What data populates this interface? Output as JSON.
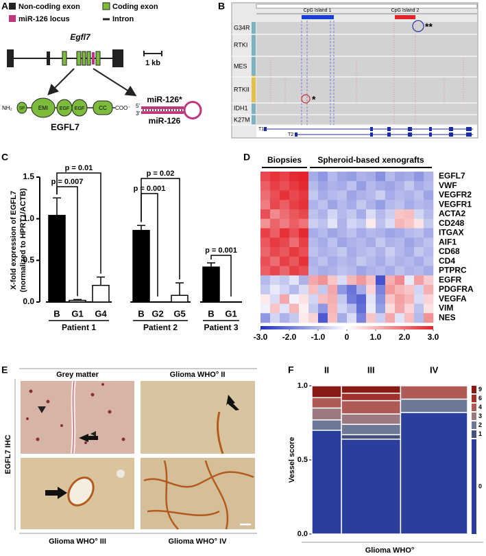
{
  "figure": {
    "A": {
      "label": "A",
      "legend": [
        "Non-coding exon",
        "Coding exon",
        "miR-126 locus",
        "Intron"
      ],
      "gene": "Egfl7",
      "scale": "1 kb",
      "n_term": "NH₂",
      "c_term": "COO⁻",
      "domains": [
        "SP",
        "EMI",
        "EGF",
        "EGF",
        "CC"
      ],
      "protein": "EGFL7",
      "mirna_star": "miR-126*",
      "mirna": "miR-126",
      "end5": "5'",
      "end3": "3'"
    },
    "B": {
      "label": "B",
      "tracks": [
        "G34R",
        "RTKI",
        "MES",
        "RTKII",
        "IDH1",
        "K27M"
      ],
      "cpg": [
        "CpG Island 1",
        "CpG Island 2"
      ],
      "transcripts": [
        "T1",
        "T2"
      ],
      "annotations": [
        "**",
        "*"
      ]
    },
    "E": {
      "label": "E",
      "side_label": "EGFL7 IHC",
      "images": [
        "Grey matter",
        "Glioma WHO° II",
        "Glioma WHO° III",
        "Glioma WHO° IV"
      ]
    }
  },
  "chart_data": [
    {
      "type": "bar",
      "panel": "C",
      "ylabel": "X-fold expression of EGFL7",
      "ylabel2": "(normalized to HPRT1/ACTB)",
      "ylim": [
        0,
        1.5
      ],
      "yticks": [
        {
          "value": 0,
          "label": "0.0"
        },
        0.5,
        {
          "value": 1,
          "label": "1.0"
        },
        1.5
      ],
      "color_biopsy": "#000000",
      "color_graft": "#ffffff",
      "groups": [
        {
          "name": "Patient 1",
          "categories": [
            "B",
            "G1",
            "G4"
          ],
          "values": [
            1.04,
            0.02,
            0.2
          ],
          "errors": [
            0.21,
            0.01,
            0.1
          ],
          "p_values": [
            "p = 0.007",
            "p = 0.01"
          ]
        },
        {
          "name": "Patient 2",
          "categories": [
            "B",
            "G2",
            "G5"
          ],
          "values": [
            0.86,
            0,
            0.08
          ],
          "errors": [
            0.06,
            0,
            0.15
          ],
          "p_values": [
            "p = 0.001",
            "p = 0.02"
          ]
        },
        {
          "name": "Patient 3",
          "categories": [
            "B",
            "G1"
          ],
          "values": [
            0.42,
            0
          ],
          "errors": [
            0.05,
            0
          ],
          "p_values": [
            "p = 0.001"
          ]
        }
      ]
    },
    {
      "type": "heatmap",
      "panel": "D",
      "column_groups": [
        {
          "name": "Biopsies",
          "columns": 5
        },
        {
          "name": "Spheroid-based xenografts",
          "columns": 13
        }
      ],
      "colorbar": {
        "lim": [
          -3,
          3
        ],
        "ticks": [
          {
            "value": -3,
            "label": "-3.0"
          },
          {
            "value": -2,
            "label": "-2.0"
          },
          {
            "value": -1,
            "label": "-1.0"
          },
          0,
          {
            "value": 1,
            "label": "1.0"
          },
          {
            "value": 2,
            "label": "2.0"
          },
          {
            "value": 3,
            "label": "3.0"
          }
        ],
        "colors": [
          "#1f2fc4",
          "#ffffff",
          "#e3242b"
        ]
      },
      "rows": [
        {
          "name": "EGFL7",
          "values": [
            2.5,
            2.8,
            2.6,
            2.9,
            3.0,
            -1.2,
            -1.5,
            -1.0,
            -1.3,
            -1.4,
            -1.1,
            -1.2,
            -1.6,
            -1.0,
            -1.3,
            -1.2,
            -1.5,
            -1.1
          ]
        },
        {
          "name": "VWF",
          "values": [
            2.2,
            2.6,
            2.4,
            2.7,
            2.9,
            -1.0,
            -1.3,
            -1.1,
            -1.2,
            -0.9,
            -1.4,
            -1.0,
            -1.2,
            -1.3,
            -1.1,
            -0.8,
            -1.2,
            -1.0
          ]
        },
        {
          "name": "VEGFR2",
          "values": [
            2.0,
            2.4,
            2.8,
            2.5,
            2.7,
            -0.8,
            -1.2,
            -1.0,
            -0.9,
            -1.3,
            -1.1,
            -1.0,
            -0.7,
            -1.2,
            -1.0,
            -1.1,
            -0.9,
            -1.3
          ]
        },
        {
          "name": "VEGFR1",
          "values": [
            1.8,
            2.5,
            2.2,
            2.6,
            2.8,
            -1.1,
            -0.9,
            -1.3,
            -1.0,
            -1.2,
            -0.8,
            -1.1,
            -1.4,
            -1.0,
            -0.9,
            -1.2,
            -1.0,
            -1.1
          ]
        },
        {
          "name": "ACTA2",
          "values": [
            2.4,
            1.6,
            2.0,
            2.3,
            2.5,
            -0.9,
            -1.1,
            -0.6,
            -1.0,
            -0.8,
            -1.2,
            -0.5,
            -1.0,
            -0.7,
            0.8,
            0.9,
            -0.6,
            -1.0
          ]
        },
        {
          "name": "CD248",
          "values": [
            1.5,
            2.1,
            1.8,
            2.2,
            1.9,
            -0.7,
            -0.9,
            -0.4,
            -1.1,
            -0.6,
            -0.8,
            0.3,
            -0.9,
            -0.5,
            1.0,
            0.8,
            0.4,
            -0.8
          ]
        },
        {
          "name": "ITGAX",
          "values": [
            2.6,
            2.2,
            2.8,
            2.4,
            2.9,
            -1.2,
            -1.0,
            -1.3,
            -1.1,
            -0.9,
            -1.2,
            -1.0,
            -1.1,
            -1.3,
            -1.2,
            -1.0,
            -0.9,
            -1.2
          ]
        },
        {
          "name": "AIF1",
          "values": [
            2.3,
            2.7,
            2.5,
            2.0,
            2.6,
            -1.0,
            -1.2,
            -0.9,
            -1.3,
            -1.1,
            -1.0,
            -1.2,
            -0.8,
            -1.1,
            -1.0,
            -1.3,
            -1.1,
            -0.9
          ]
        },
        {
          "name": "CD68",
          "values": [
            2.1,
            2.5,
            2.3,
            2.7,
            2.4,
            -0.9,
            -1.1,
            -1.0,
            -0.8,
            -1.2,
            -1.0,
            -0.9,
            -1.1,
            -0.7,
            -1.0,
            -1.2,
            -0.8,
            -1.0
          ]
        },
        {
          "name": "CD4",
          "values": [
            2.4,
            2.0,
            2.6,
            2.3,
            2.8,
            -1.1,
            -0.9,
            -1.2,
            -1.0,
            -1.1,
            -0.8,
            -1.0,
            -1.2,
            -0.9,
            -1.1,
            -1.0,
            -1.2,
            -0.9
          ]
        },
        {
          "name": "PTPRC",
          "values": [
            2.2,
            2.5,
            2.1,
            2.6,
            2.4,
            -1.0,
            -1.2,
            -1.1,
            -0.9,
            -1.0,
            -1.3,
            -1.1,
            -1.0,
            -1.2,
            -0.9,
            -1.1,
            -1.0,
            -1.2
          ]
        },
        {
          "name": "EGFR",
          "values": [
            -1.0,
            -0.6,
            -0.8,
            -0.4,
            -1.1,
            1.2,
            1.5,
            0.8,
            -0.5,
            1.0,
            1.4,
            0.9,
            -2.5,
            1.1,
            1.6,
            -0.3,
            1.3,
            0.7
          ]
        },
        {
          "name": "PDGFRA",
          "values": [
            -0.8,
            -0.3,
            -0.6,
            -1.0,
            -0.5,
            0.9,
            -0.8,
            1.2,
            -1.5,
            -2.0,
            -1.2,
            0.6,
            -1.8,
            1.4,
            1.0,
            0.8,
            -0.6,
            1.1
          ]
        },
        {
          "name": "VEGFA",
          "values": [
            0.3,
            -0.5,
            1.2,
            -0.2,
            0.4,
            -0.6,
            0.9,
            1.1,
            -0.8,
            -1.9,
            -2.2,
            -0.4,
            -1.6,
            0.8,
            1.3,
            1.0,
            -0.5,
            0.6
          ]
        },
        {
          "name": "VIM",
          "values": [
            -0.2,
            0.8,
            -0.4,
            1.0,
            0.2,
            -0.8,
            -1.5,
            1.0,
            -0.6,
            -1.0,
            -2.1,
            -0.3,
            -1.4,
            0.5,
            1.2,
            0.6,
            -0.9,
            0.4
          ]
        },
        {
          "name": "NES",
          "values": [
            -1.5,
            -0.6,
            -1.1,
            -0.8,
            0.3,
            0.6,
            -2.4,
            0.9,
            -1.2,
            -0.5,
            -1.8,
            0.8,
            -0.7,
            1.2,
            -0.4,
            0.9,
            -1.0,
            1.5
          ]
        }
      ]
    },
    {
      "type": "mosaic",
      "panel": "F",
      "ylabel": "Vessel score",
      "xlabel": "Glioma WHO°",
      "categories": [
        "II",
        "III",
        "IV"
      ],
      "widths": [
        0.19,
        0.38,
        0.43
      ],
      "ylim": [
        0,
        1
      ],
      "yticks": [
        {
          "value": 0,
          "label": "0.0"
        },
        0.5,
        {
          "value": 1,
          "label": "1.0"
        }
      ],
      "series": [
        {
          "name": "0",
          "color": "#2a3f9c",
          "values": [
            0.7,
            0.64,
            0.82
          ]
        },
        {
          "name": "1",
          "color": "#45507e",
          "values": [
            0,
            0.03,
            0
          ]
        },
        {
          "name": "2",
          "color": "#6d7896",
          "values": [
            0.07,
            0.07,
            0.09
          ]
        },
        {
          "name": "3",
          "color": "#9a7a80",
          "values": [
            0.08,
            0.07,
            0
          ]
        },
        {
          "name": "4",
          "color": "#b05a58",
          "values": [
            0.07,
            0.09,
            0.09
          ]
        },
        {
          "name": "6",
          "color": "#a2302b",
          "values": [
            0,
            0.05,
            0
          ]
        },
        {
          "name": "9",
          "color": "#8a1a14",
          "values": [
            0.08,
            0.05,
            0
          ]
        }
      ]
    }
  ]
}
